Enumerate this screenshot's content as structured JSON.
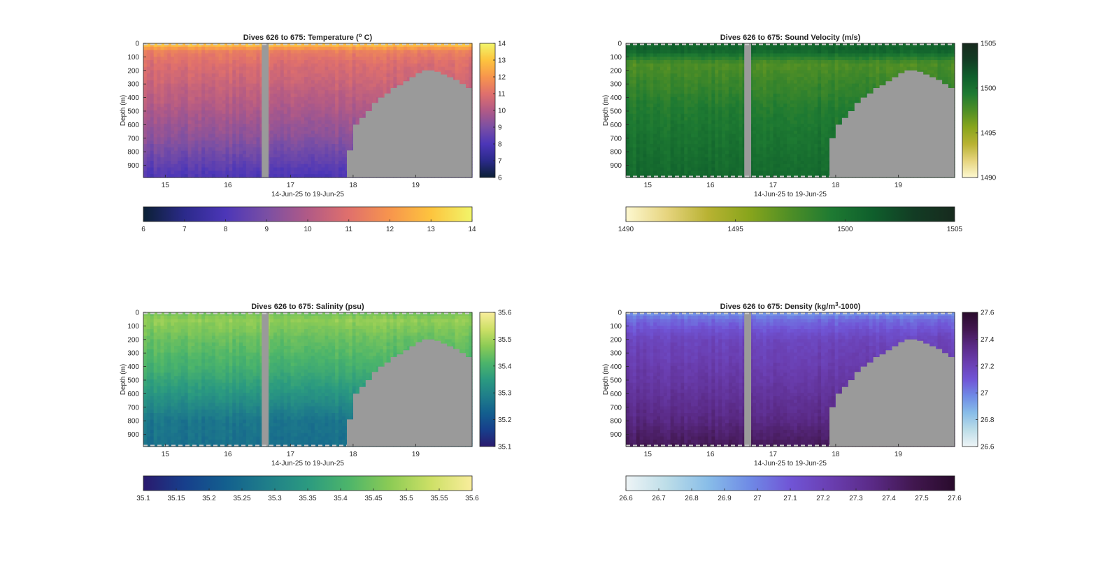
{
  "chart_data": [
    {
      "type": "heatmap",
      "title": "Dives 626 to 675: Temperature (° C)",
      "title_parts": [
        "Dives 626 to 675: Temperature (",
        "o",
        " C)"
      ],
      "title_style": "superscript",
      "xlabel": "14-Jun-25 to 19-Jun-25",
      "ylabel": "Depth (m)",
      "x_ticks": [
        "15",
        "16",
        "17",
        "18",
        "19"
      ],
      "y_ticks": [
        "0",
        "100",
        "200",
        "300",
        "400",
        "500",
        "600",
        "700",
        "800",
        "900"
      ],
      "xlim": [
        14.65,
        19.9
      ],
      "ylim": [
        0,
        990
      ],
      "grid": false,
      "gap": [
        16.54,
        16.65
      ],
      "seafloor": [
        [
          17.9,
          790
        ],
        [
          18.0,
          600
        ],
        [
          18.1,
          550
        ],
        [
          18.2,
          500
        ],
        [
          18.3,
          440
        ],
        [
          18.4,
          400
        ],
        [
          18.5,
          370
        ],
        [
          18.6,
          330
        ],
        [
          18.7,
          310
        ],
        [
          18.8,
          280
        ],
        [
          18.9,
          250
        ],
        [
          19.0,
          220
        ],
        [
          19.1,
          200
        ],
        [
          19.2,
          200
        ],
        [
          19.3,
          210
        ],
        [
          19.4,
          230
        ],
        [
          19.5,
          250
        ],
        [
          19.6,
          270
        ],
        [
          19.7,
          300
        ],
        [
          19.8,
          330
        ],
        [
          19.9,
          360
        ]
      ],
      "colormap": [
        "#0b2035",
        "#2b2a8a",
        "#4c36b8",
        "#7a4fa4",
        "#b15a86",
        "#e0706c",
        "#f7954d",
        "#fdc43e",
        "#f1f56a"
      ],
      "profile": [
        [
          0,
          13.2
        ],
        [
          60,
          11.4
        ],
        [
          150,
          10.9
        ],
        [
          400,
          10.2
        ],
        [
          700,
          9.3
        ],
        [
          990,
          8.0
        ]
      ],
      "vertical_colorbar": {
        "ticks": [
          "6",
          "7",
          "8",
          "9",
          "10",
          "11",
          "12",
          "13",
          "14"
        ],
        "lim": [
          6,
          14
        ]
      },
      "horizontal_colorbar": {
        "ticks": [
          "6",
          "7",
          "8",
          "9",
          "10",
          "11",
          "12",
          "13",
          "14"
        ],
        "lim": [
          6,
          14
        ]
      }
    },
    {
      "type": "heatmap",
      "title": "Dives 626 to 675: Sound Velocity (m/s)",
      "title_parts": [
        "Dives 626 to 675: Sound Velocity (m/s)"
      ],
      "title_style": "plain",
      "xlabel": "14-Jun-25 to 19-Jun-25",
      "ylabel": "Depth (m)",
      "x_ticks": [
        "15",
        "16",
        "17",
        "18",
        "19"
      ],
      "y_ticks": [
        "0",
        "100",
        "200",
        "300",
        "400",
        "500",
        "600",
        "700",
        "800",
        "900"
      ],
      "xlim": [
        14.65,
        19.9
      ],
      "ylim": [
        0,
        990
      ],
      "grid": false,
      "gap": [
        16.54,
        16.65
      ],
      "seafloor": [
        [
          17.9,
          700
        ],
        [
          18.0,
          600
        ],
        [
          18.1,
          550
        ],
        [
          18.2,
          500
        ],
        [
          18.3,
          440
        ],
        [
          18.4,
          400
        ],
        [
          18.5,
          370
        ],
        [
          18.6,
          330
        ],
        [
          18.7,
          310
        ],
        [
          18.8,
          280
        ],
        [
          18.9,
          250
        ],
        [
          19.0,
          220
        ],
        [
          19.1,
          200
        ],
        [
          19.2,
          200
        ],
        [
          19.3,
          210
        ],
        [
          19.4,
          230
        ],
        [
          19.5,
          250
        ],
        [
          19.6,
          270
        ],
        [
          19.7,
          300
        ],
        [
          19.8,
          330
        ],
        [
          19.9,
          360
        ]
      ],
      "colormap": [
        "#fdf8d0",
        "#e6d47e",
        "#b8b232",
        "#88a51c",
        "#4e8e26",
        "#1e7a32",
        "#0f5f2c",
        "#123c24",
        "#172a1e"
      ],
      "profile": [
        [
          0,
          1500.6
        ],
        [
          50,
          1501.0
        ],
        [
          150,
          1497.5
        ],
        [
          300,
          1498.3
        ],
        [
          500,
          1499.3
        ],
        [
          750,
          1500.0
        ],
        [
          990,
          1500.6
        ]
      ],
      "vertical_colorbar": {
        "ticks": [
          "1490",
          "1495",
          "1500",
          "1505"
        ],
        "lim": [
          1490,
          1505
        ]
      },
      "horizontal_colorbar": {
        "ticks": [
          "1490",
          "1495",
          "1500",
          "1505"
        ],
        "lim": [
          1490,
          1505
        ]
      }
    },
    {
      "type": "heatmap",
      "title": "Dives 626 to 675: Salinity (psu)",
      "title_parts": [
        "Dives 626 to 675: Salinity (psu)"
      ],
      "title_style": "plain",
      "xlabel": "14-Jun-25 to 19-Jun-25",
      "ylabel": "Depth (m)",
      "x_ticks": [
        "15",
        "16",
        "17",
        "18",
        "19"
      ],
      "y_ticks": [
        "0",
        "100",
        "200",
        "300",
        "400",
        "500",
        "600",
        "700",
        "800",
        "900"
      ],
      "xlim": [
        14.65,
        19.9
      ],
      "ylim": [
        0,
        990
      ],
      "grid": false,
      "gap": [
        16.54,
        16.65
      ],
      "seafloor": [
        [
          17.9,
          790
        ],
        [
          18.0,
          600
        ],
        [
          18.1,
          550
        ],
        [
          18.2,
          500
        ],
        [
          18.3,
          440
        ],
        [
          18.4,
          400
        ],
        [
          18.5,
          370
        ],
        [
          18.6,
          330
        ],
        [
          18.7,
          310
        ],
        [
          18.8,
          280
        ],
        [
          18.9,
          250
        ],
        [
          19.0,
          220
        ],
        [
          19.1,
          200
        ],
        [
          19.2,
          200
        ],
        [
          19.3,
          210
        ],
        [
          19.4,
          230
        ],
        [
          19.5,
          250
        ],
        [
          19.6,
          270
        ],
        [
          19.7,
          300
        ],
        [
          19.8,
          330
        ],
        [
          19.9,
          360
        ]
      ],
      "colormap": [
        "#2a1a6e",
        "#173f8c",
        "#135f8e",
        "#1f7e8a",
        "#2b9a80",
        "#4db56a",
        "#8ccb55",
        "#cde066",
        "#f9ed9c"
      ],
      "profile": [
        [
          0,
          35.45
        ],
        [
          60,
          35.48
        ],
        [
          200,
          35.44
        ],
        [
          400,
          35.4
        ],
        [
          600,
          35.34
        ],
        [
          800,
          35.27
        ],
        [
          990,
          35.26
        ]
      ],
      "vertical_colorbar": {
        "ticks": [
          "35.1",
          "35.2",
          "35.3",
          "35.4",
          "35.5",
          "35.6"
        ],
        "lim": [
          35.1,
          35.6
        ]
      },
      "horizontal_colorbar": {
        "ticks": [
          "35.1",
          "35.15",
          "35.2",
          "35.25",
          "35.3",
          "35.35",
          "35.4",
          "35.45",
          "35.5",
          "35.55",
          "35.6"
        ],
        "lim": [
          35.1,
          35.6
        ]
      }
    },
    {
      "type": "heatmap",
      "title": "Dives 626 to 675: Density (kg/m³-1000)",
      "title_parts": [
        "Dives 626 to 675: Density (kg/m",
        "3",
        "-1000)"
      ],
      "title_style": "superscript",
      "xlabel": "14-Jun-25 to 19-Jun-25",
      "ylabel": "Depth (m)",
      "x_ticks": [
        "15",
        "16",
        "17",
        "18",
        "19"
      ],
      "y_ticks": [
        "0",
        "100",
        "200",
        "300",
        "400",
        "500",
        "600",
        "700",
        "800",
        "900"
      ],
      "xlim": [
        14.65,
        19.9
      ],
      "ylim": [
        0,
        990
      ],
      "grid": false,
      "gap": [
        16.54,
        16.65
      ],
      "seafloor": [
        [
          17.9,
          700
        ],
        [
          18.0,
          600
        ],
        [
          18.1,
          550
        ],
        [
          18.2,
          500
        ],
        [
          18.3,
          440
        ],
        [
          18.4,
          400
        ],
        [
          18.5,
          370
        ],
        [
          18.6,
          330
        ],
        [
          18.7,
          310
        ],
        [
          18.8,
          280
        ],
        [
          18.9,
          250
        ],
        [
          19.0,
          220
        ],
        [
          19.1,
          200
        ],
        [
          19.2,
          200
        ],
        [
          19.3,
          210
        ],
        [
          19.4,
          230
        ],
        [
          19.5,
          250
        ],
        [
          19.6,
          270
        ],
        [
          19.7,
          300
        ],
        [
          19.8,
          330
        ],
        [
          19.9,
          360
        ]
      ],
      "colormap": [
        "#eef4f6",
        "#bcdde8",
        "#88bde8",
        "#6f8be6",
        "#7055d6",
        "#6a3eb0",
        "#5a2a86",
        "#41174f",
        "#290b2c"
      ],
      "profile": [
        [
          0,
          26.95
        ],
        [
          60,
          27.05
        ],
        [
          200,
          27.18
        ],
        [
          500,
          27.26
        ],
        [
          800,
          27.36
        ],
        [
          990,
          27.46
        ]
      ],
      "vertical_colorbar": {
        "ticks": [
          "26.6",
          "26.8",
          "27",
          "27.2",
          "27.4",
          "27.6"
        ],
        "lim": [
          26.6,
          27.6
        ]
      },
      "horizontal_colorbar": {
        "ticks": [
          "26.6",
          "26.7",
          "26.8",
          "26.9",
          "27",
          "27.1",
          "27.2",
          "27.3",
          "27.4",
          "27.5",
          "27.6"
        ],
        "lim": [
          26.6,
          27.6
        ]
      }
    }
  ]
}
